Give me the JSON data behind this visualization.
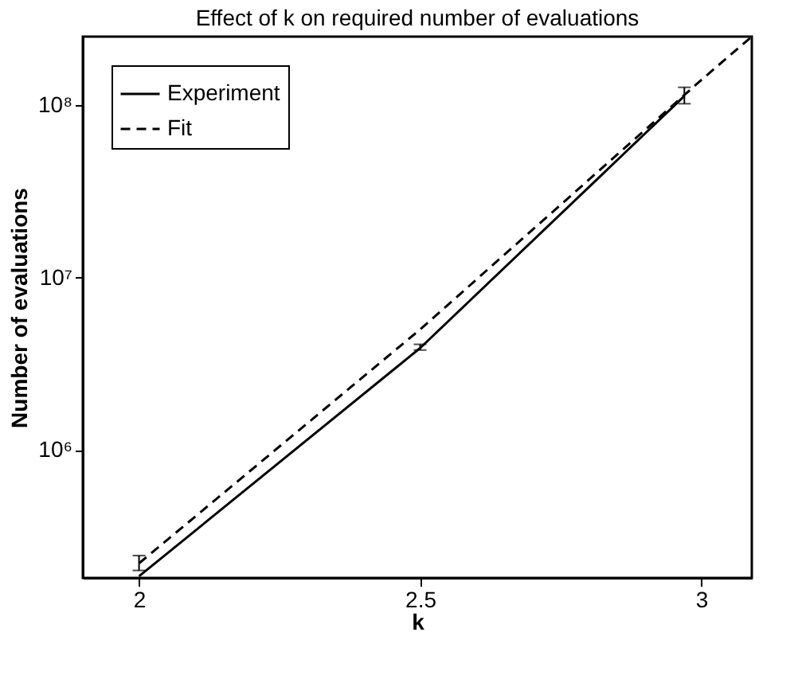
{
  "chart_data": {
    "type": "line",
    "title": "Effect of k on required number of evaluations",
    "xlabel": "k",
    "ylabel": "Number of evaluations",
    "log": "y",
    "grid": false,
    "legend": "top left",
    "xlim": [
      1.9,
      3.09
    ],
    "xticks": [
      2,
      2.5,
      3
    ],
    "ylim": [
      181000,
      250000000
    ],
    "yticks": [
      {
        "value": 1000000,
        "label": "10⁶"
      },
      {
        "value": 10000000,
        "label": "10⁷"
      },
      {
        "value": 100000000,
        "label": "10⁸"
      }
    ],
    "series": [
      {
        "name": "Experiment",
        "color": "#000000",
        "line_style": "solid",
        "x": [
          2,
          2.5,
          2.97
        ],
        "values": [
          185000,
          3900000,
          113000000
        ],
        "errors": [
          [
            200000,
            244000
          ],
          [
            3800000,
            4100000
          ],
          [
            102000000,
            127000000
          ]
        ]
      },
      {
        "name": "Fit",
        "color": "#000000",
        "line_style": "dashed",
        "x": [
          2,
          2.5,
          3,
          3.09
        ],
        "values": [
          220000,
          5000000,
          140000000,
          250000000
        ]
      }
    ]
  }
}
